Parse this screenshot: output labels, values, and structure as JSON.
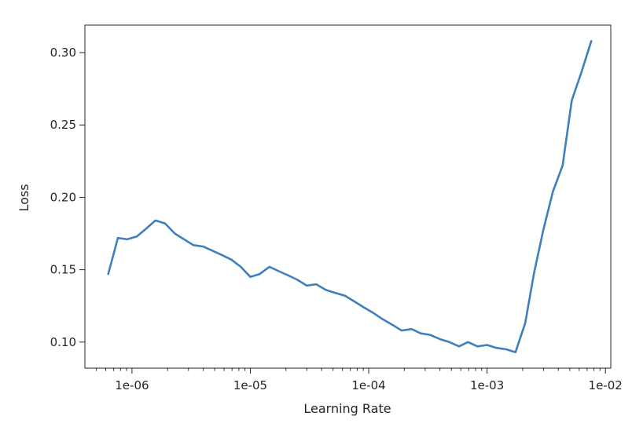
{
  "chart_data": {
    "type": "line",
    "title": "",
    "xlabel": "Learning Rate",
    "ylabel": "Loss",
    "xscale": "log",
    "xlim": [
      4e-07,
      0.0111
    ],
    "ylim": [
      0.082,
      0.319
    ],
    "grid": false,
    "color": "#3f7fbd",
    "x_ticks": [
      {
        "value": 1e-06,
        "label": "1e-06"
      },
      {
        "value": 1e-05,
        "label": "1e-05"
      },
      {
        "value": 0.0001,
        "label": "1e-04"
      },
      {
        "value": 0.001,
        "label": "1e-03"
      },
      {
        "value": 0.01,
        "label": "1e-02"
      }
    ],
    "y_ticks": [
      {
        "value": 0.1,
        "label": "0.10"
      },
      {
        "value": 0.15,
        "label": "0.15"
      },
      {
        "value": 0.2,
        "label": "0.20"
      },
      {
        "value": 0.25,
        "label": "0.25"
      },
      {
        "value": 0.3,
        "label": "0.30"
      }
    ],
    "series": [
      {
        "x": [
          6.3e-07,
          7.6e-07,
          9.1e-07,
          1.1e-06,
          1.3e-06,
          1.58e-06,
          1.9e-06,
          2.3e-06,
          2.75e-06,
          3.3e-06,
          4e-06,
          4.8e-06,
          5.8e-06,
          6.9e-06,
          8.3e-06,
          1e-05,
          1.2e-05,
          1.45e-05,
          1.74e-05,
          2.1e-05,
          2.5e-05,
          3e-05,
          3.6e-05,
          4.35e-05,
          5.2e-05,
          6.3e-05,
          7.6e-05,
          9.1e-05,
          0.00011,
          0.00013,
          0.000158,
          0.00019,
          0.00023,
          0.000275,
          0.00033,
          0.0004,
          0.00048,
          0.00058,
          0.00069,
          0.00083,
          0.001,
          0.0012,
          0.00145,
          0.00174,
          0.0021,
          0.0025,
          0.003,
          0.0036,
          0.00435,
          0.0052,
          0.0063,
          0.0076
        ],
        "y": [
          0.147,
          0.172,
          0.171,
          0.173,
          0.178,
          0.184,
          0.182,
          0.175,
          0.171,
          0.167,
          0.166,
          0.163,
          0.16,
          0.157,
          0.152,
          0.145,
          0.147,
          0.152,
          0.149,
          0.146,
          0.143,
          0.139,
          0.14,
          0.136,
          0.134,
          0.132,
          0.128,
          0.124,
          0.12,
          0.116,
          0.112,
          0.108,
          0.109,
          0.106,
          0.105,
          0.102,
          0.1,
          0.097,
          0.1,
          0.097,
          0.098,
          0.096,
          0.095,
          0.093,
          0.113,
          0.148,
          0.178,
          0.204,
          0.222,
          0.267,
          0.287,
          0.308
        ]
      }
    ]
  }
}
